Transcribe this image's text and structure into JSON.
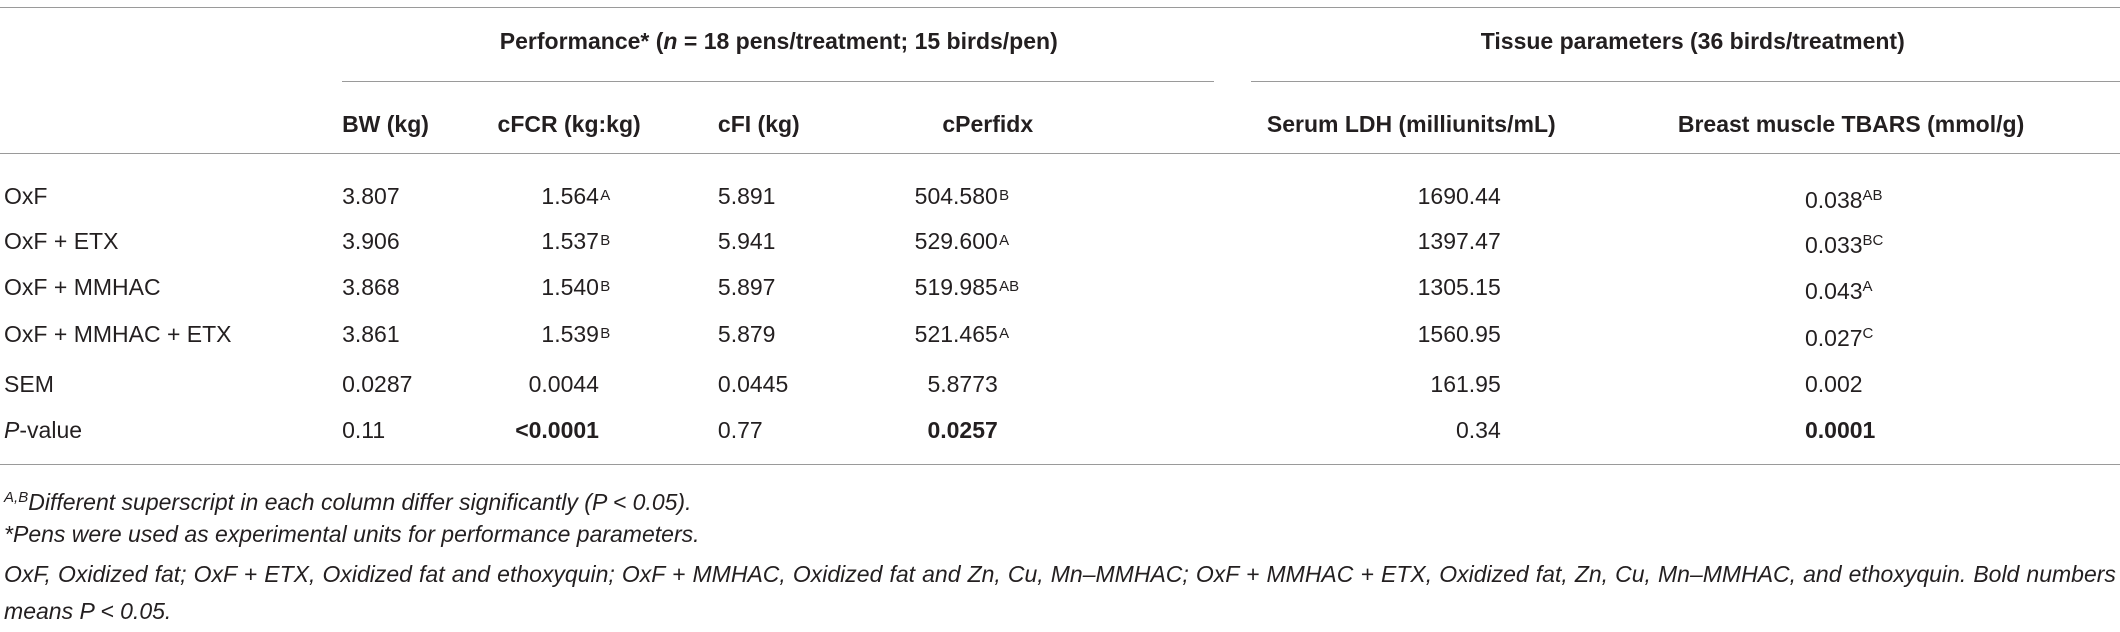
{
  "table": {
    "group_headers": [
      {
        "parts": [
          {
            "text": "Performance* ("
          },
          {
            "text": "n",
            "italic": true
          },
          {
            "text": " = 18 pens/treatment; 15 birds/pen)"
          }
        ]
      },
      {
        "parts": [
          {
            "text": "Tissue parameters (36 birds/treatment)"
          }
        ]
      }
    ],
    "columns": [
      "BW (kg)",
      "cFCR (kg:kg)",
      "cFI (kg)",
      "cPerfidx",
      "Serum LDH (milliunits/mL)",
      "Breast muscle TBARS (mmol/g)"
    ],
    "rows": [
      {
        "label": [
          {
            "text": "OxF"
          }
        ],
        "cells": [
          {
            "text": "3.807"
          },
          {
            "text": "1.564",
            "sup": "A"
          },
          {
            "text": "5.891"
          },
          {
            "text": "504.580",
            "sup": "B"
          },
          {
            "text": "1690.44"
          },
          {
            "text": "0.038",
            "sup": "AB"
          }
        ]
      },
      {
        "label": [
          {
            "text": "OxF + ETX"
          }
        ],
        "cells": [
          {
            "text": "3.906"
          },
          {
            "text": "1.537",
            "sup": "B"
          },
          {
            "text": "5.941"
          },
          {
            "text": "529.600",
            "sup": "A"
          },
          {
            "text": "1397.47"
          },
          {
            "text": "0.033",
            "sup": "BC"
          }
        ]
      },
      {
        "label": [
          {
            "text": "OxF + MMHAC"
          }
        ],
        "cells": [
          {
            "text": "3.868"
          },
          {
            "text": "1.540",
            "sup": "B"
          },
          {
            "text": "5.897"
          },
          {
            "text": "519.985",
            "sup": "AB"
          },
          {
            "text": "1305.15"
          },
          {
            "text": "0.043",
            "sup": "A"
          }
        ]
      },
      {
        "label": [
          {
            "text": "OxF + MMHAC + ETX"
          }
        ],
        "cells": [
          {
            "text": "3.861"
          },
          {
            "text": "1.539",
            "sup": "B"
          },
          {
            "text": "5.879"
          },
          {
            "text": "521.465",
            "sup": "A"
          },
          {
            "text": "1560.95"
          },
          {
            "text": "0.027",
            "sup": "C"
          }
        ]
      },
      {
        "label": [
          {
            "text": "SEM"
          }
        ],
        "cells": [
          {
            "text": "0.0287"
          },
          {
            "text": "0.0044"
          },
          {
            "text": "0.0445"
          },
          {
            "text": "5.8773"
          },
          {
            "text": "161.95"
          },
          {
            "text": "0.002"
          }
        ]
      },
      {
        "label": [
          {
            "text": "P",
            "italic": true
          },
          {
            "text": "-value"
          }
        ],
        "cells": [
          {
            "text": "0.11"
          },
          {
            "text": "<0.0001",
            "bold": true
          },
          {
            "text": "0.77"
          },
          {
            "text": "0.0257",
            "bold": true
          },
          {
            "text": "0.34"
          },
          {
            "text": "0.0001",
            "bold": true
          }
        ]
      }
    ],
    "footnotes": [
      {
        "parts": [
          {
            "text": "A,B",
            "sup": true
          },
          {
            "text": "Different superscript in each column differ significantly (P < 0.05).",
            "italic": true
          }
        ]
      },
      {
        "parts": [
          {
            "text": "*Pens were used as experimental units for performance parameters.",
            "italic": true
          }
        ]
      },
      {
        "parts": [
          {
            "text": "OxF, Oxidized fat; OxF + ETX, Oxidized fat and ethoxyquin; OxF + MMHAC, Oxidized fat and Zn, Cu, Mn–MMHAC; OxF + MMHAC + ETX, Oxidized fat, Zn, Cu, Mn–MMHAC, and ethoxyquin. Bold numbers means P < 0.05.",
            "italic": true
          }
        ]
      }
    ]
  }
}
